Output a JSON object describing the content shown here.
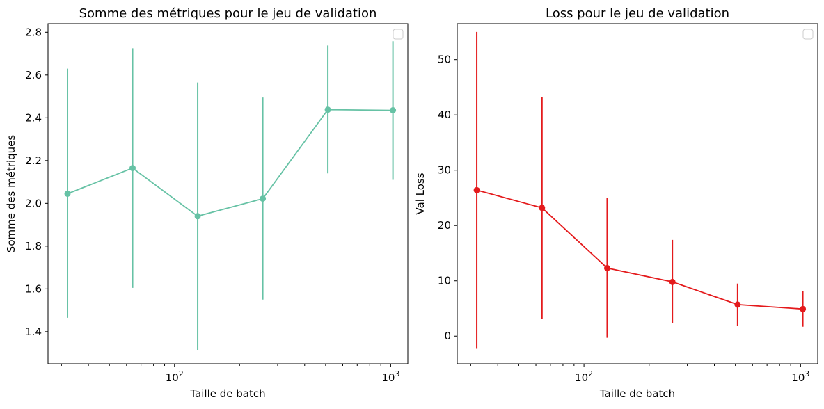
{
  "chart_data": [
    {
      "type": "line",
      "title": "Somme des métriques pour le jeu de validation",
      "xlabel": "Taille de batch",
      "ylabel": "Somme des métriques",
      "xscale": "log",
      "xlim": [
        26,
        1200
      ],
      "ylim": [
        1.25,
        2.84
      ],
      "xticks": [
        {
          "value": 100,
          "base": "10",
          "exp": "2"
        },
        {
          "value": 1000,
          "base": "10",
          "exp": "3"
        }
      ],
      "yticks": [
        1.4,
        1.6,
        1.8,
        2.0,
        2.2,
        2.4,
        2.6,
        2.8
      ],
      "ytick_decimals": 1,
      "legend": "top-right",
      "legend_entries": [],
      "color": "#66c2a5",
      "series": [
        {
          "x": [
            32,
            64,
            128,
            256,
            512,
            1024
          ],
          "y": [
            2.045,
            2.165,
            1.94,
            2.022,
            2.438,
            2.435
          ],
          "err_low": [
            1.465,
            1.605,
            1.315,
            1.55,
            2.14,
            2.11
          ],
          "err_high": [
            2.63,
            2.725,
            2.565,
            2.495,
            2.738,
            2.758
          ]
        }
      ]
    },
    {
      "type": "line",
      "title": "Loss pour le jeu de validation",
      "xlabel": "Taille de batch",
      "ylabel": "Val Loss",
      "xscale": "log",
      "xlim": [
        26,
        1200
      ],
      "ylim": [
        -5,
        56.5
      ],
      "xticks": [
        {
          "value": 100,
          "base": "10",
          "exp": "2"
        },
        {
          "value": 1000,
          "base": "10",
          "exp": "3"
        }
      ],
      "yticks": [
        0,
        10,
        20,
        30,
        40,
        50
      ],
      "ytick_decimals": 0,
      "legend": "top-right",
      "legend_entries": [],
      "color": "#e41a1c",
      "series": [
        {
          "x": [
            32,
            64,
            128,
            256,
            512,
            1024
          ],
          "y": [
            26.4,
            23.2,
            12.3,
            9.8,
            5.7,
            4.9
          ],
          "err_low": [
            -2.3,
            3.1,
            -0.3,
            2.3,
            1.9,
            1.7
          ],
          "err_high": [
            55.0,
            43.3,
            25.0,
            17.4,
            9.5,
            8.1
          ]
        }
      ]
    }
  ]
}
